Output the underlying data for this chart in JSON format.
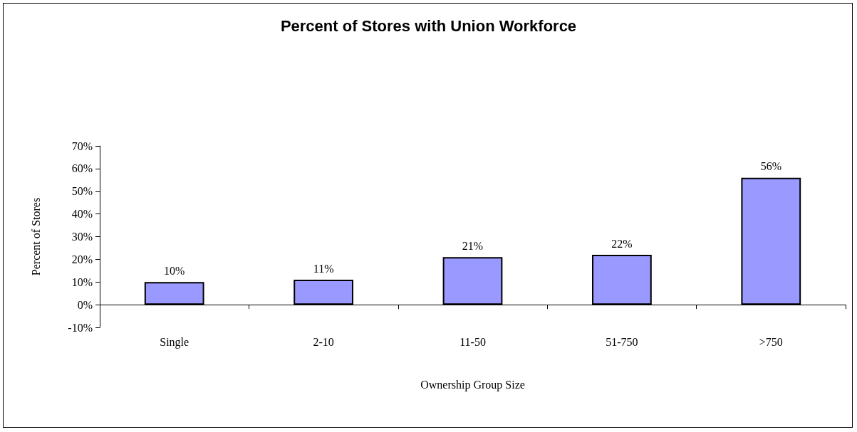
{
  "chart_data": {
    "type": "bar",
    "title": "Percent of Stores with Union Workforce",
    "xlabel": "Ownership Group Size",
    "ylabel": "Percent of Stores",
    "categories": [
      "Single",
      "2-10",
      "11-50",
      "51-750",
      ">750"
    ],
    "values": [
      10,
      11,
      21,
      22,
      56
    ],
    "value_labels": [
      "10%",
      "11%",
      "21%",
      "22%",
      "56%"
    ],
    "color": "#9999ff",
    "ylim": [
      -10,
      70
    ],
    "yticks": [
      {
        "value": -10,
        "label": "-10%"
      },
      {
        "value": 0,
        "label": "0%"
      },
      {
        "value": 10,
        "label": "10%"
      },
      {
        "value": 20,
        "label": "20%"
      },
      {
        "value": 30,
        "label": "30%"
      },
      {
        "value": 40,
        "label": "40%"
      },
      {
        "value": 50,
        "label": "50%"
      },
      {
        "value": 60,
        "label": "60%"
      },
      {
        "value": 70,
        "label": "70%"
      }
    ],
    "line_style": "solid"
  }
}
